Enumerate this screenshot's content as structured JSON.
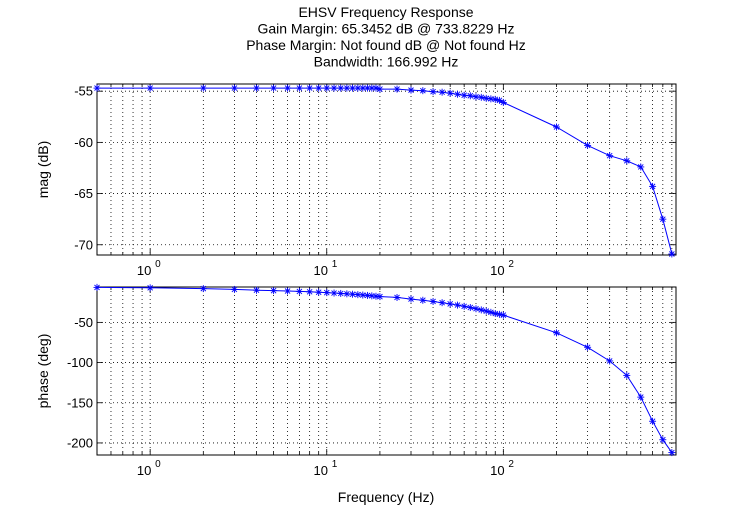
{
  "figure": {
    "title_lines": [
      "EHSV Frequency Response",
      "Gain Margin: 65.3452 dB @ 733.8229 Hz",
      "Phase Margin: Not found dB @ Not found Hz",
      "Bandwidth: 166.992 Hz"
    ],
    "line_color": "#0000ff"
  },
  "chart_data": [
    {
      "type": "line",
      "id": "magnitude",
      "ylabel": "mag (dB)",
      "xscale": "log",
      "xlim": [
        0.5,
        950
      ],
      "ylim": [
        -71,
        -54.3
      ],
      "yticks": [
        -55,
        -60,
        -65,
        -70
      ],
      "ytick_labels": [
        "-55",
        "-60",
        "-65",
        "-70"
      ],
      "xtick_decades": [
        {
          "base": "10",
          "exp": "0",
          "value": 1
        },
        {
          "base": "10",
          "exp": "1",
          "value": 10
        },
        {
          "base": "10",
          "exp": "2",
          "value": 100
        }
      ],
      "grid": true,
      "marker": "asterisk",
      "x": [
        0.5,
        1,
        2,
        3,
        4,
        5,
        6,
        7,
        8,
        9,
        10,
        11,
        12,
        13,
        14,
        15,
        16,
        17,
        18,
        19,
        20,
        25,
        30,
        35,
        40,
        45,
        50,
        55,
        60,
        65,
        70,
        75,
        80,
        85,
        90,
        95,
        100,
        200,
        300,
        400,
        500,
        600,
        700,
        800,
        900
      ],
      "y": [
        -54.7,
        -54.7,
        -54.7,
        -54.7,
        -54.7,
        -54.7,
        -54.7,
        -54.7,
        -54.7,
        -54.7,
        -54.7,
        -54.7,
        -54.7,
        -54.7,
        -54.7,
        -54.7,
        -54.7,
        -54.7,
        -54.7,
        -54.7,
        -54.8,
        -54.8,
        -54.9,
        -54.95,
        -55.05,
        -55.1,
        -55.2,
        -55.3,
        -55.4,
        -55.45,
        -55.55,
        -55.6,
        -55.7,
        -55.75,
        -55.8,
        -55.9,
        -56.1,
        -58.5,
        -60.3,
        -61.3,
        -61.8,
        -62.4,
        -64.3,
        -67.5,
        -70.9
      ]
    },
    {
      "type": "line",
      "id": "phase",
      "ylabel": "phase (deg)",
      "xlabel": "Frequency (Hz)",
      "xscale": "log",
      "xlim": [
        0.5,
        950
      ],
      "ylim": [
        -215,
        -6
      ],
      "yticks": [
        -50,
        -100,
        -150,
        -200
      ],
      "ytick_labels": [
        "-50",
        "-100",
        "-150",
        "-200"
      ],
      "xtick_decades": [
        {
          "base": "10",
          "exp": "0",
          "value": 1
        },
        {
          "base": "10",
          "exp": "1",
          "value": 10
        },
        {
          "base": "10",
          "exp": "2",
          "value": 100
        }
      ],
      "grid": true,
      "marker": "asterisk",
      "x": [
        0.5,
        1,
        2,
        3,
        4,
        5,
        6,
        7,
        8,
        9,
        10,
        11,
        12,
        13,
        14,
        15,
        16,
        17,
        18,
        19,
        20,
        25,
        30,
        35,
        40,
        45,
        50,
        55,
        60,
        65,
        70,
        75,
        80,
        85,
        90,
        95,
        100,
        200,
        300,
        400,
        500,
        600,
        700,
        800,
        900
      ],
      "y": [
        -6.5,
        -7,
        -8,
        -9,
        -10,
        -10.5,
        -11,
        -11.5,
        -12,
        -12.5,
        -13,
        -13.5,
        -14,
        -14.5,
        -15,
        -15.5,
        -16,
        -16.5,
        -17,
        -17.5,
        -18,
        -19,
        -21,
        -22.5,
        -24,
        -25.5,
        -27,
        -28.5,
        -30,
        -31.5,
        -33,
        -34.5,
        -36,
        -37.5,
        -39,
        -40,
        -41,
        -63,
        -81,
        -98,
        -116,
        -143,
        -173,
        -196,
        -212
      ]
    }
  ]
}
